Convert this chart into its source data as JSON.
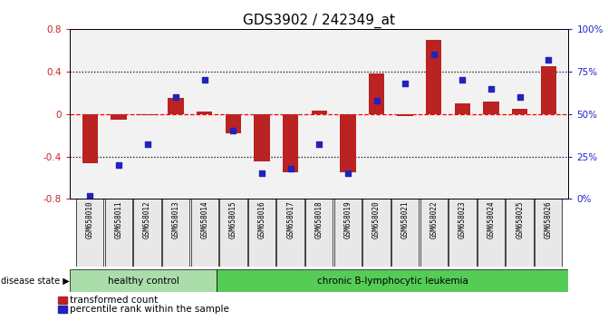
{
  "title": "GDS3902 / 242349_at",
  "samples": [
    "GSM658010",
    "GSM658011",
    "GSM658012",
    "GSM658013",
    "GSM658014",
    "GSM658015",
    "GSM658016",
    "GSM658017",
    "GSM658018",
    "GSM658019",
    "GSM658020",
    "GSM658021",
    "GSM658022",
    "GSM658023",
    "GSM658024",
    "GSM658025",
    "GSM658026"
  ],
  "bar_values": [
    -0.46,
    -0.05,
    -0.01,
    0.15,
    0.02,
    -0.18,
    -0.45,
    -0.55,
    0.03,
    -0.55,
    0.38,
    -0.02,
    0.7,
    0.1,
    0.12,
    0.05,
    0.45
  ],
  "dot_values": [
    2,
    20,
    32,
    60,
    70,
    40,
    15,
    18,
    32,
    15,
    58,
    68,
    85,
    70,
    65,
    60,
    82
  ],
  "bar_color": "#BB2222",
  "dot_color": "#2222BB",
  "ylim_left": [
    -0.8,
    0.8
  ],
  "ylim_right": [
    0,
    100
  ],
  "yticks_left": [
    -0.8,
    -0.4,
    0.0,
    0.4,
    0.8
  ],
  "yticks_right": [
    0,
    25,
    50,
    75,
    100
  ],
  "ytick_labels_right": [
    "0%",
    "25%",
    "50%",
    "75%",
    "100%"
  ],
  "hlines": [
    -0.4,
    0.0,
    0.4
  ],
  "hline_styles": [
    "dotted",
    "dashed",
    "dotted"
  ],
  "hline_colors": [
    "black",
    "red",
    "black"
  ],
  "healthy_count": 5,
  "healthy_label": "healthy control",
  "disease_label": "chronic B-lymphocytic leukemia",
  "disease_state_label": "disease state",
  "healthy_color": "#AADDAA",
  "disease_color": "#55CC55",
  "bar_label": "transformed count",
  "dot_label": "percentile rank within the sample",
  "plot_bg_color": "#F2F2F2",
  "title_color": "#000000",
  "left_tick_color": "#CC2222",
  "right_tick_color": "#2222CC"
}
